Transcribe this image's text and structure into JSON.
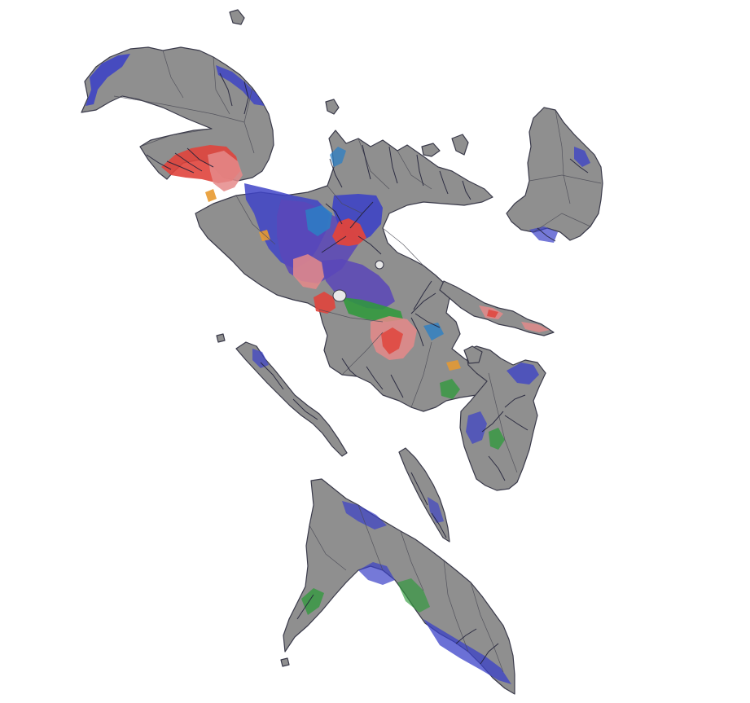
{
  "map": {
    "colors": {
      "background": "#ffffff",
      "land": "#8f8f8f",
      "outline": "#3a3a4a",
      "boundary": "#4a4a55",
      "drainage": "#22223a",
      "hazard_blue": "#3a40c8",
      "hazard_purple": "#5a46b8",
      "hazard_red": "#e0443c",
      "hazard_salmon": "#e58a8a",
      "hazard_steelblue": "#2c7fc4",
      "hazard_green": "#2e9a3a",
      "hazard_orange": "#e89a30",
      "crater_white": "#e8e8e8"
    }
  }
}
